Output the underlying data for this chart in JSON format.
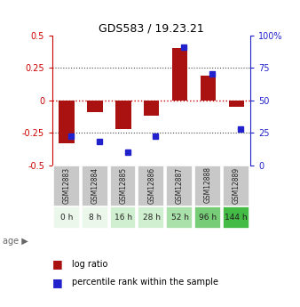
{
  "title": "GDS583 / 19.23.21",
  "samples": [
    "GSM12883",
    "GSM12884",
    "GSM12885",
    "GSM12886",
    "GSM12887",
    "GSM12888",
    "GSM12889"
  ],
  "ages": [
    "0 h",
    "8 h",
    "16 h",
    "28 h",
    "52 h",
    "96 h",
    "144 h"
  ],
  "log_ratio": [
    -0.33,
    -0.09,
    -0.22,
    -0.12,
    0.4,
    0.19,
    -0.05
  ],
  "percentile": [
    22,
    18,
    10,
    22,
    91,
    70,
    28
  ],
  "bar_color": "#aa1111",
  "pct_color": "#2222cc",
  "ylim": [
    -0.5,
    0.5
  ],
  "yticks_left": [
    -0.5,
    -0.25,
    0,
    0.25,
    0.5
  ],
  "yticks_right": [
    0,
    25,
    50,
    75,
    100
  ],
  "hline_color": "#cc0000",
  "dotted_color": "#444444",
  "age_colors": [
    "#eaf7ea",
    "#eaf7ea",
    "#d0efd0",
    "#d0efd0",
    "#aae0aa",
    "#77cc77",
    "#44bb44"
  ],
  "sample_bg": "#c8c8c8",
  "legend_log_ratio": "log ratio",
  "legend_pct": "percentile rank within the sample",
  "bar_width": 0.55
}
